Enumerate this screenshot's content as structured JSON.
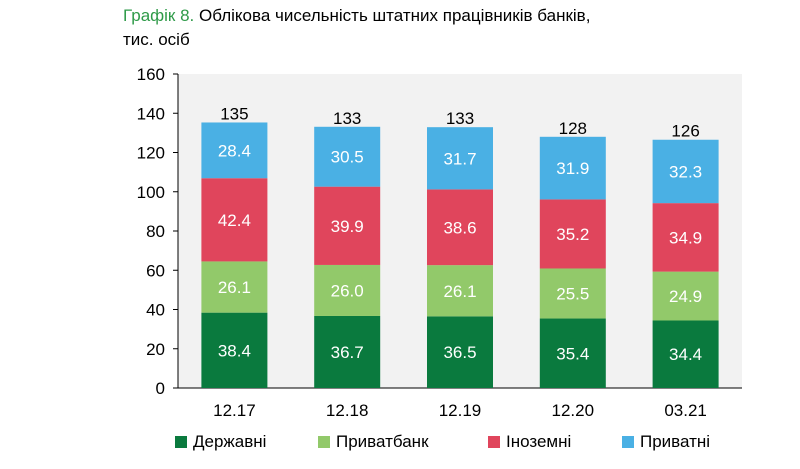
{
  "title": {
    "prefix": "Графік 8.",
    "line1": "Облікова чисельність штатних працівників банків,",
    "line2": "тис. осіб"
  },
  "chart_data": {
    "type": "bar",
    "stacked": true,
    "title": "Графік 8. Облікова чисельність штатних працівників банків, тис. осіб",
    "categories": [
      "12.17",
      "12.18",
      "12.19",
      "12.20",
      "03.21"
    ],
    "totals": [
      135,
      133,
      133,
      128,
      126
    ],
    "series": [
      {
        "name": "Державні",
        "color": "#0a7a3e",
        "values": [
          38.4,
          36.7,
          36.5,
          35.4,
          34.4
        ]
      },
      {
        "name": "Приватбанк",
        "color": "#92c96a",
        "values": [
          26.1,
          26.0,
          26.1,
          25.5,
          24.9
        ]
      },
      {
        "name": "Іноземні",
        "color": "#e0455c",
        "values": [
          42.4,
          39.9,
          38.6,
          35.2,
          34.9
        ]
      },
      {
        "name": "Приватні",
        "color": "#4ab0e4",
        "values": [
          28.4,
          30.5,
          31.7,
          31.9,
          32.3
        ]
      }
    ],
    "yticks": [
      0,
      20,
      40,
      60,
      80,
      100,
      120,
      140,
      160
    ],
    "ylim": [
      0,
      160
    ],
    "grid": false,
    "legend_position": "bottom",
    "background": "#f2f2f2"
  }
}
